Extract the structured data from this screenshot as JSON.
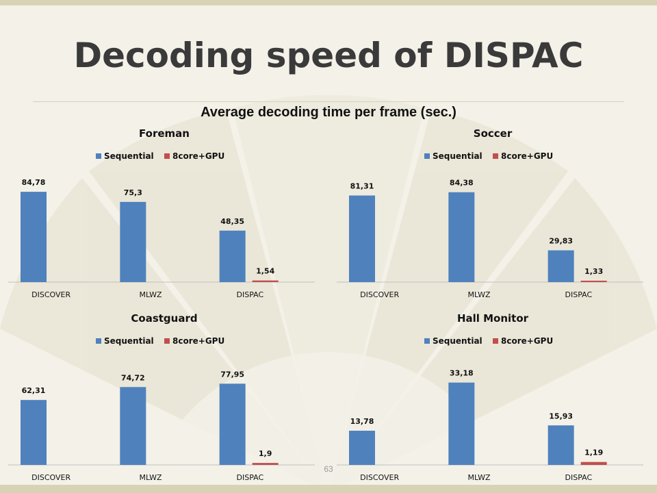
{
  "slide": {
    "title": "Decoding speed of DISPAC",
    "page_number": "63"
  },
  "colors": {
    "sequential": "#4f81bd",
    "core_gpu": "#c0504d",
    "background": "#f3f1e8"
  },
  "chart_data": [
    {
      "type": "bar",
      "suptitle": "Average decoding time per frame (sec.)",
      "title": "Foreman",
      "categories": [
        "DISCOVER",
        "MLWZ",
        "DISPAC"
      ],
      "series": [
        {
          "name": "Sequential",
          "values": [
            84.78,
            75.3,
            48.35
          ],
          "labels": [
            "84,78",
            "75,3",
            "48,35"
          ]
        },
        {
          "name": "8core+GPU",
          "values": [
            null,
            null,
            1.54
          ],
          "labels": [
            "",
            "",
            "1,54"
          ]
        }
      ],
      "ylim": [
        0,
        100
      ],
      "legend": "top",
      "grid": false
    },
    {
      "type": "bar",
      "title": "Soccer",
      "categories": [
        "DISCOVER",
        "MLWZ",
        "DISPAC"
      ],
      "series": [
        {
          "name": "Sequential",
          "values": [
            81.31,
            84.38,
            29.83
          ],
          "labels": [
            "81,31",
            "84,38",
            "29,83"
          ]
        },
        {
          "name": "8core+GPU",
          "values": [
            null,
            null,
            1.33
          ],
          "labels": [
            "",
            "",
            "1,33"
          ]
        }
      ],
      "ylim": [
        0,
        100
      ],
      "legend": "top",
      "grid": false
    },
    {
      "type": "bar",
      "title": "Coastguard",
      "categories": [
        "DISCOVER",
        "MLWZ",
        "DISPAC"
      ],
      "series": [
        {
          "name": "Sequential",
          "values": [
            62.31,
            74.72,
            77.95
          ],
          "labels": [
            "62,31",
            "74,72",
            "77,95"
          ]
        },
        {
          "name": "8core+GPU",
          "values": [
            null,
            null,
            1.9
          ],
          "labels": [
            "",
            "",
            "1,9"
          ]
        }
      ],
      "ylim": [
        0,
        100
      ],
      "legend": "top",
      "grid": false
    },
    {
      "type": "bar",
      "title": "Hall Monitor",
      "categories": [
        "DISCOVER",
        "MLWZ",
        "DISPAC"
      ],
      "series": [
        {
          "name": "Sequential",
          "values": [
            13.78,
            33.18,
            15.93
          ],
          "labels": [
            "13,78",
            "33,18",
            "15,93"
          ]
        },
        {
          "name": "8core+GPU",
          "values": [
            null,
            null,
            1.19
          ],
          "labels": [
            "",
            "",
            "1,19"
          ]
        }
      ],
      "ylim": [
        0,
        40
      ],
      "legend": "top",
      "grid": false
    }
  ]
}
